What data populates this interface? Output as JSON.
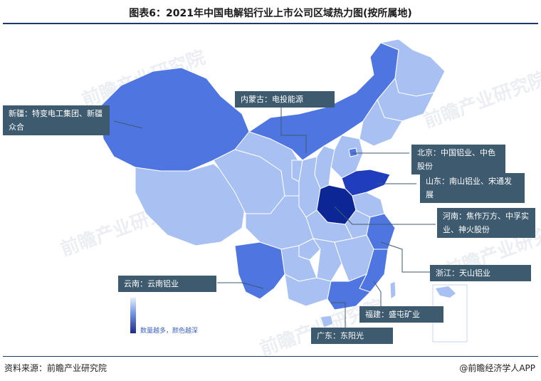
{
  "title": "图表6：2021年中国电解铝行业上市公司区域热力图(按所属地)",
  "footer": {
    "source": "资料来源：前瞻产业研究院",
    "brand": "@前瞻经济学人APP"
  },
  "legend": {
    "label": "数量越多，颜色越深"
  },
  "watermark": "前瞻产业研究院",
  "colors": {
    "lightest": "#a9c1f2",
    "light": "#7d9ee8",
    "medium": "#4f76e0",
    "dark": "#1f3dbd",
    "darkest": "#0d2696",
    "callout_bg": "#3d5a6e"
  },
  "callouts": [
    {
      "region": "新疆",
      "text": "新疆：特变电工集团、新疆众合"
    },
    {
      "region": "内蒙古",
      "text": "内蒙古：电投能源"
    },
    {
      "region": "北京",
      "text": "北京：中国铝业、中色股份"
    },
    {
      "region": "山东",
      "text": "山东：南山铝业、宋通发展"
    },
    {
      "region": "河南",
      "text": "河南：焦作万方、中孚实业、神火股份"
    },
    {
      "region": "浙江",
      "text": "浙江：天山铝业"
    },
    {
      "region": "云南",
      "text": "云南：云南铝业"
    },
    {
      "region": "福建",
      "text": "福建：盛屯矿业"
    },
    {
      "region": "广东",
      "text": "广东：东阳光"
    }
  ]
}
